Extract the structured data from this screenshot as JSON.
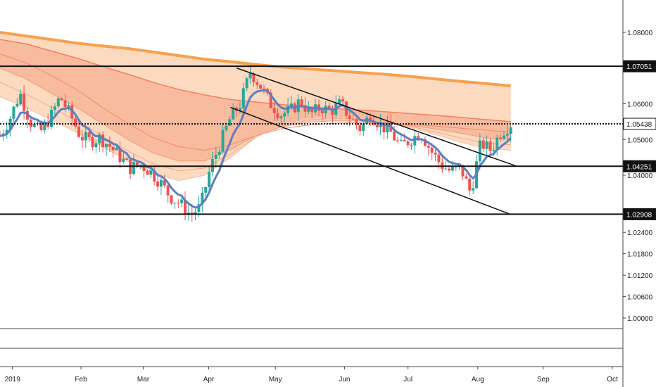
{
  "chart_data": {
    "type": "candlestick",
    "y_axis": {
      "ticks": [
        "1.08000",
        "1.06000",
        "1.05000",
        "1.04000",
        "1.02400",
        "1.01800",
        "1.01200",
        "1.00600",
        "1.00000"
      ],
      "min": 0.995,
      "max": 1.09
    },
    "x_axis": {
      "ticks": [
        "2019",
        "Feb",
        "Mar",
        "Apr",
        "May",
        "Jun",
        "Jul",
        "Aug",
        "Sep",
        "Oct"
      ]
    },
    "horizontal_levels": [
      {
        "label": "1.07051",
        "value": 1.07051,
        "style": "solid"
      },
      {
        "label": "1.05438",
        "value": 1.05438,
        "style": "dotted",
        "highlight": true
      },
      {
        "label": "1.04251",
        "value": 1.04251,
        "style": "solid"
      },
      {
        "label": "1.02908",
        "value": 1.02908,
        "style": "solid"
      }
    ],
    "close_path": [
      1.051,
      1.056,
      1.063,
      1.055,
      1.052,
      1.056,
      1.062,
      1.057,
      1.051,
      1.0495,
      1.0505,
      1.048,
      1.045,
      1.042,
      1.043,
      1.041,
      1.038,
      1.034,
      1.032,
      1.029,
      1.031,
      1.042,
      1.049,
      1.056,
      1.06,
      1.069,
      1.065,
      1.06,
      1.057,
      1.058,
      1.061,
      1.057,
      1.059,
      1.058,
      1.06,
      1.056,
      1.053,
      1.057,
      1.054,
      1.052,
      1.048,
      1.05,
      1.052,
      1.047,
      1.043,
      1.041,
      1.042,
      1.035,
      1.049,
      1.047,
      1.052,
      1.05438
    ],
    "fan_lines": [
      {
        "color": "#f7a04d",
        "width": 4,
        "values": [
          1.08,
          1.079,
          1.078,
          1.077,
          1.0762,
          1.0755,
          1.0745,
          1.0735,
          1.0725,
          1.0718,
          1.071,
          1.0703,
          1.0698,
          1.0693,
          1.0688,
          1.0683,
          1.0677,
          1.067,
          1.0663,
          1.0657,
          1.065
        ]
      },
      {
        "color": "#f08060",
        "width": 1.5,
        "values": [
          1.078,
          1.0768,
          1.0748,
          1.0728,
          1.0705,
          1.0683,
          1.066,
          1.064,
          1.0625,
          1.0612,
          1.0605,
          1.0598,
          1.0592,
          1.0587,
          1.0583,
          1.0578,
          1.0573,
          1.0568,
          1.0562,
          1.0556,
          1.055
        ]
      },
      {
        "color": "#f08a6a",
        "width": 1,
        "values": [
          1.074,
          1.0715,
          1.068,
          1.064,
          1.059,
          1.0545,
          1.0505,
          1.048,
          1.047,
          1.0485,
          1.051,
          1.053,
          1.054,
          1.0545,
          1.0548,
          1.0546,
          1.0542,
          1.0538,
          1.0532,
          1.0526,
          1.052
        ]
      },
      {
        "color": "#f29a7a",
        "width": 1,
        "values": [
          1.07,
          1.067,
          1.063,
          1.059,
          1.0545,
          1.05,
          1.0462,
          1.044,
          1.044,
          1.047,
          1.051,
          1.0535,
          1.0548,
          1.0552,
          1.0552,
          1.0548,
          1.054,
          1.053,
          1.0518,
          1.0505,
          1.05
        ]
      },
      {
        "color": "#f4aa8c",
        "width": 1,
        "values": [
          1.066,
          1.0628,
          1.059,
          1.0552,
          1.051,
          1.0468,
          1.0432,
          1.0412,
          1.042,
          1.0458,
          1.0506,
          1.0538,
          1.0554,
          1.056,
          1.0558,
          1.055,
          1.0538,
          1.0522,
          1.0505,
          1.049,
          1.0485
        ]
      },
      {
        "color": "#f6b89e",
        "width": 1,
        "values": [
          1.062,
          1.059,
          1.0555,
          1.052,
          1.048,
          1.044,
          1.0405,
          1.0385,
          1.04,
          1.0448,
          1.0505,
          1.0542,
          1.056,
          1.0566,
          1.0563,
          1.0552,
          1.0535,
          1.0515,
          1.0493,
          1.0475,
          1.047
        ]
      }
    ],
    "trend_lines": [
      {
        "from": [
          0.38,
          1.07
        ],
        "to": [
          0.83,
          1.0425
        ]
      },
      {
        "from": [
          0.37,
          1.059
        ],
        "to": [
          0.82,
          1.029
        ]
      }
    ]
  }
}
